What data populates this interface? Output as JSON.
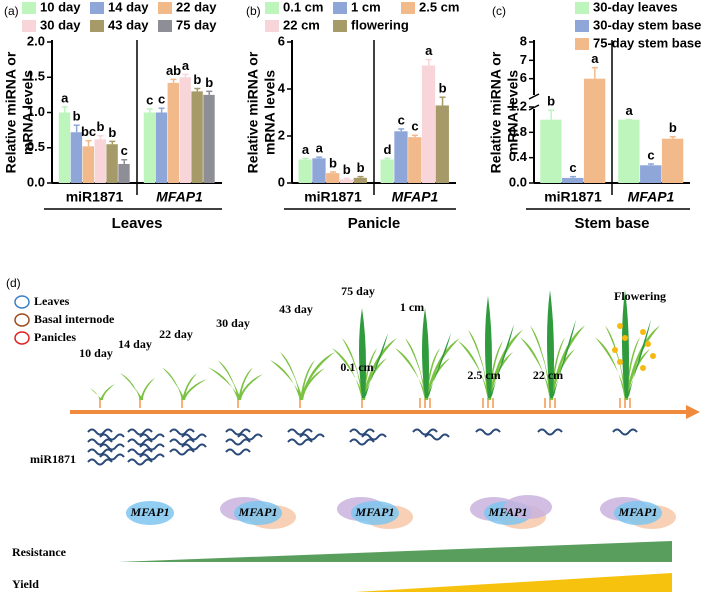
{
  "chart_data": [
    {
      "type": "bar",
      "panel": "(a)",
      "ylabel": [
        "Relative miRNA or",
        "mRNA levels"
      ],
      "xlabel": "Leaves",
      "categories": [
        "miR1871",
        "MFAP1"
      ],
      "ylim": [
        0,
        2
      ],
      "yticks": [
        {
          "value": 0,
          "label": "0.0"
        },
        {
          "value": 0.5,
          "label": "0.5"
        },
        {
          "value": 1,
          "label": "1.0"
        },
        {
          "value": 1.5,
          "label": "1.5"
        },
        {
          "value": 2,
          "label": "2.0"
        }
      ],
      "series": [
        {
          "name": "10 day",
          "color": "#bdf5bd",
          "values": [
            1.0,
            1.0
          ],
          "errors": [
            0.08,
            0.05
          ],
          "letters": [
            "a",
            "c"
          ]
        },
        {
          "name": "14 day",
          "color": "#8ea6d8",
          "values": [
            0.72,
            1.0
          ],
          "errors": [
            0.1,
            0.06
          ],
          "letters": [
            "b",
            "c"
          ]
        },
        {
          "name": "22 day",
          "color": "#f2b98a",
          "values": [
            0.52,
            1.42
          ],
          "errors": [
            0.08,
            0.05
          ],
          "letters": [
            "bc",
            "ab"
          ]
        },
        {
          "name": "30 day",
          "color": "#f8d5d8",
          "values": [
            0.62,
            1.5
          ],
          "errors": [
            0.05,
            0.04
          ],
          "letters": [
            "b",
            "a"
          ]
        },
        {
          "name": "43 day",
          "color": "#a69a68",
          "values": [
            0.55,
            1.3
          ],
          "errors": [
            0.04,
            0.04
          ],
          "letters": [
            "b",
            "b"
          ]
        },
        {
          "name": "75 day",
          "color": "#8e8e96",
          "values": [
            0.27,
            1.25
          ],
          "errors": [
            0.06,
            0.05
          ],
          "letters": [
            "c",
            "b"
          ]
        }
      ]
    },
    {
      "type": "bar",
      "panel": "(b)",
      "ylabel": [
        "Relative miRNA or",
        "mRNA levels"
      ],
      "xlabel": "Panicle",
      "categories": [
        "miR1871",
        "MFAP1"
      ],
      "ylim": [
        0,
        6
      ],
      "yticks": [
        0,
        2,
        4,
        6
      ],
      "series": [
        {
          "name": "0.1 cm",
          "color": "#bdf5bd",
          "values": [
            1.0,
            1.0
          ],
          "errors": [
            0.05,
            0.05
          ],
          "letters": [
            "a",
            "d"
          ]
        },
        {
          "name": "1 cm",
          "color": "#8ea6d8",
          "values": [
            1.05,
            2.2
          ],
          "errors": [
            0.05,
            0.1
          ],
          "letters": [
            "a",
            "c"
          ]
        },
        {
          "name": "2.5 cm",
          "color": "#f2b98a",
          "values": [
            0.42,
            1.95
          ],
          "errors": [
            0.05,
            0.08
          ],
          "letters": [
            "b",
            "c"
          ]
        },
        {
          "name": "22 cm",
          "color": "#f8d5d8",
          "values": [
            0.15,
            5.0
          ],
          "errors": [
            0.04,
            0.25
          ],
          "letters": [
            "b",
            "a"
          ]
        },
        {
          "name": "flowering",
          "color": "#a69a68",
          "values": [
            0.22,
            3.3
          ],
          "errors": [
            0.05,
            0.35
          ],
          "letters": [
            "b",
            "b"
          ]
        }
      ]
    },
    {
      "type": "bar",
      "panel": "(c)",
      "ylabel": [
        "Relative miRNA or",
        "mRNA levels"
      ],
      "xlabel": "Stem base",
      "categories": [
        "miR1871",
        "MFAP1"
      ],
      "ylim": [
        0,
        8
      ],
      "ybreak": [
        1.2,
        5
      ],
      "yticks": [
        {
          "value": 0,
          "label": "0.0"
        },
        {
          "value": 0.4,
          "label": "0.4"
        },
        {
          "value": 0.8,
          "label": "0.8"
        },
        {
          "value": 1.2,
          "label": "1.2"
        },
        6,
        7,
        8
      ],
      "series": [
        {
          "name": "30-day leaves",
          "color": "#bdf5bd",
          "values": [
            1.0,
            1.0
          ],
          "errors": [
            0.15,
            0.0
          ],
          "letters": [
            "b",
            "a"
          ]
        },
        {
          "name": "30-day stem base",
          "color": "#8ea6d8",
          "values": [
            0.08,
            0.28
          ],
          "errors": [
            0.02,
            0.02
          ],
          "letters": [
            "c",
            "c"
          ]
        },
        {
          "name": "75-day stem base",
          "color": "#f2b98a",
          "values": [
            6.0,
            0.7
          ],
          "errors": [
            0.6,
            0.03
          ],
          "letters": [
            "a",
            "b"
          ]
        }
      ]
    }
  ],
  "diagram": {
    "panel": "(d)",
    "legend": [
      {
        "label": "Leaves",
        "color": "#3a7fc8"
      },
      {
        "label": "Basal internode",
        "color": "#9b4a1a"
      },
      {
        "label": "Panicles",
        "color": "#e02020"
      }
    ],
    "stages": [
      "10 day",
      "14 day",
      "22 day",
      "30 day",
      "43 day",
      "75 day",
      "0.1 cm",
      "1 cm",
      "2.5 cm",
      "22 cm",
      "Flowering"
    ],
    "mirna": "miR1871",
    "proteins": [
      "MFAP1",
      "MFAP1",
      "MFAP1",
      "MFAP1",
      "MFAP1"
    ],
    "resistance": "Resistance",
    "yield": "Yield"
  }
}
